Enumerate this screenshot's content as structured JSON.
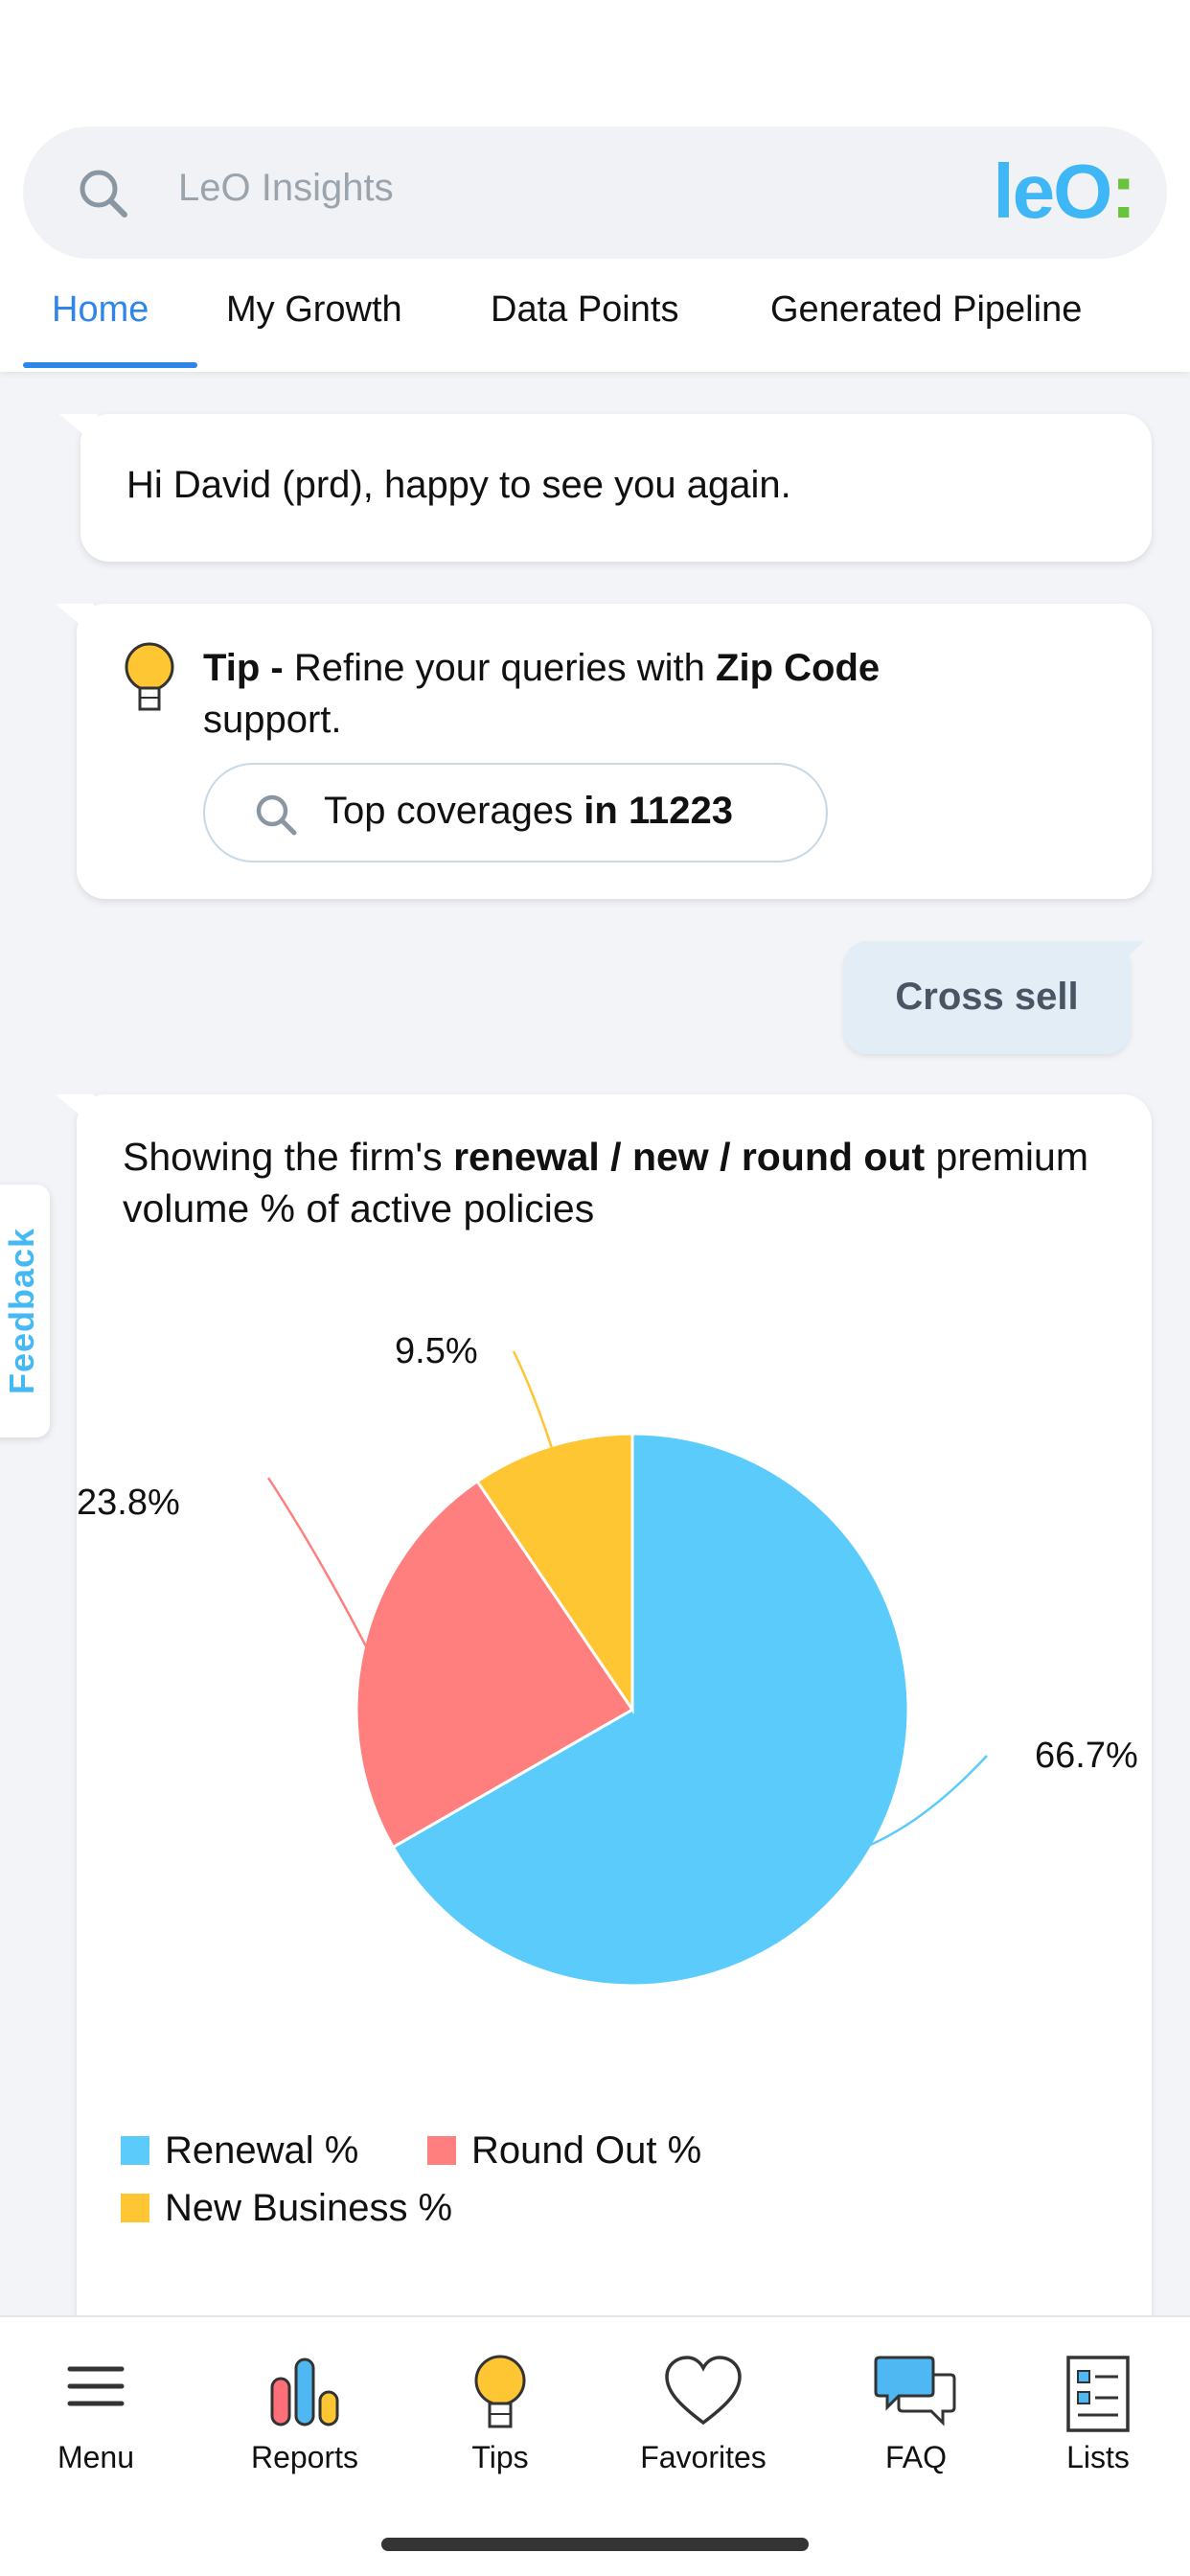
{
  "search": {
    "placeholder": "LeO Insights"
  },
  "brand": {
    "logo_text": "leO",
    "logo_colon": ":"
  },
  "tabs": [
    {
      "label": "Home",
      "active": true
    },
    {
      "label": "My Growth",
      "active": false
    },
    {
      "label": "Data Points",
      "active": false
    },
    {
      "label": "Generated Pipeline",
      "active": false
    }
  ],
  "greeting": {
    "text": "Hi David (prd), happy to see you again."
  },
  "tip": {
    "prefix": "Tip -",
    "text_mid": " Refine your queries with ",
    "highlight": "Zip Code",
    "text_end": " support.",
    "chip_text": "Top coverages ",
    "chip_bold": "in 11223"
  },
  "user_message": {
    "text": "Cross sell"
  },
  "feedback": {
    "label": "Feedback"
  },
  "chart_card": {
    "title_prefix": "Showing the firm's ",
    "title_bold": "renewal / new / round out",
    "title_suffix": " premium volume % of active policies"
  },
  "chart_data": {
    "type": "pie",
    "categories": [
      "Renewal %",
      "Round Out %",
      "New Business %"
    ],
    "values": [
      66.7,
      23.8,
      9.5
    ],
    "labels": [
      "66.7%",
      "23.8%",
      "9.5%"
    ],
    "colors": [
      "#5bcbfb",
      "#ff7f7f",
      "#ffc633"
    ],
    "legend_position": "bottom"
  },
  "bottom_nav": [
    {
      "label": "Menu",
      "icon": "menu-icon"
    },
    {
      "label": "Reports",
      "icon": "bar-chart-icon"
    },
    {
      "label": "Tips",
      "icon": "lightbulb-icon"
    },
    {
      "label": "Favorites",
      "icon": "heart-icon"
    },
    {
      "label": "FAQ",
      "icon": "chat-bubbles-icon"
    },
    {
      "label": "Lists",
      "icon": "list-icon"
    }
  ]
}
